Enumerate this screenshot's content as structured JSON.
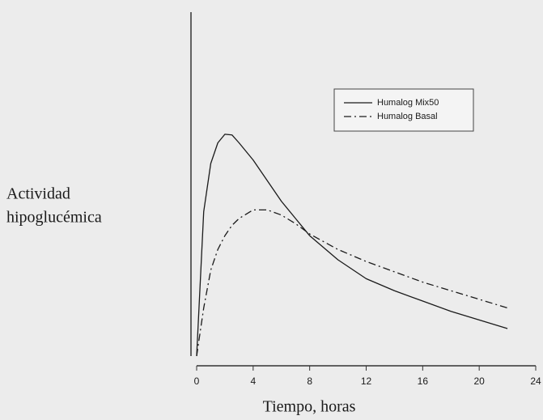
{
  "chart_data": {
    "type": "line",
    "ylabel": [
      "Actividad",
      "hipoglucémica"
    ],
    "xlabel": "Tiempo, horas",
    "x": [
      0,
      0.5,
      1,
      1.5,
      2,
      2.5,
      3,
      4,
      5,
      6,
      7,
      8,
      10,
      12,
      14,
      16,
      18,
      20,
      22
    ],
    "series": [
      {
        "name": "Humalog Mix50",
        "color": "#1a1a1a",
        "dash": "solid",
        "values": [
          0,
          42,
          56,
          62,
          64.5,
          64.3,
          62,
          57,
          51,
          45,
          40,
          35,
          28,
          22.5,
          19,
          16,
          13,
          10.5,
          8
        ]
      },
      {
        "name": "Humalog Basal",
        "color": "#1a1a1a",
        "dash": "dashdot",
        "values": [
          0,
          14,
          25,
          31,
          35,
          38,
          40,
          42.5,
          42.5,
          41,
          38.5,
          35.5,
          31,
          27.5,
          24.5,
          21.5,
          19,
          16.5,
          14
        ]
      }
    ],
    "xlim": [
      0,
      24
    ],
    "xticks": [
      0,
      4,
      8,
      12,
      16,
      20,
      24
    ],
    "ylim": [
      0,
      100
    ],
    "legend": "upper right"
  }
}
